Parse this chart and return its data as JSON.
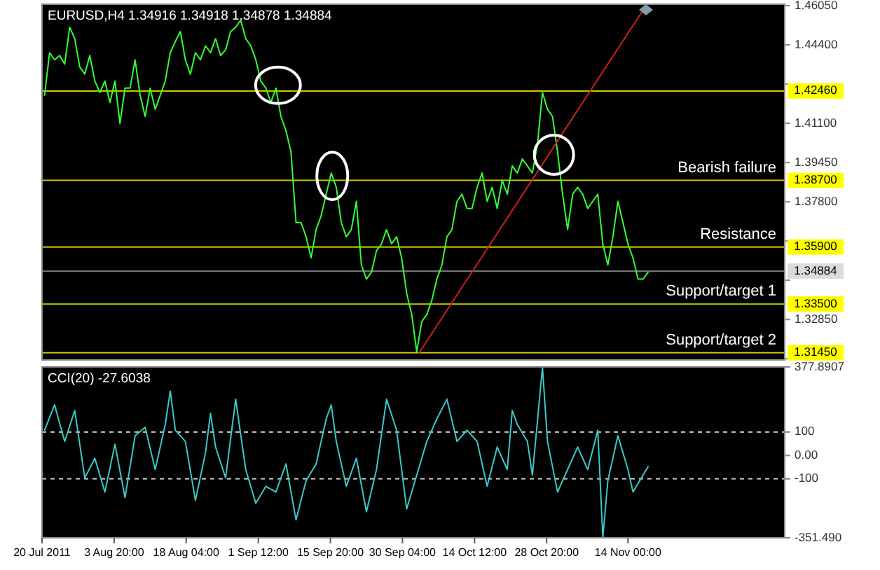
{
  "chart_data": [
    {
      "type": "line",
      "title": "EURUSD,H4 1.34916 1.34918 1.34878 1.34884",
      "tick_labels": "y",
      "grid": false,
      "x": [
        "2011-07-21",
        "2011-07-22",
        "2011-07-23",
        "2011-07-24",
        "2011-07-25",
        "2011-07-26",
        "2011-07-27",
        "2011-07-28",
        "2011-07-29",
        "2011-07-30",
        "2011-07-31",
        "2011-08-01",
        "2011-08-02",
        "2011-08-03",
        "2011-08-04",
        "2011-08-05",
        "2011-08-06",
        "2011-08-07",
        "2011-08-08",
        "2011-08-09",
        "2011-08-10",
        "2011-08-11",
        "2011-08-12",
        "2011-08-13",
        "2011-08-14",
        "2011-08-15",
        "2011-08-16",
        "2011-08-17",
        "2011-08-18",
        "2011-08-19",
        "2011-08-20",
        "2011-08-21",
        "2011-08-22",
        "2011-08-23",
        "2011-08-24",
        "2011-08-25",
        "2011-08-26",
        "2011-08-27",
        "2011-08-28",
        "2011-08-29",
        "2011-08-30",
        "2011-08-31",
        "2011-09-01",
        "2011-09-02",
        "2011-09-03",
        "2011-09-04",
        "2011-09-05",
        "2011-09-06",
        "2011-09-07",
        "2011-09-08",
        "2011-09-09",
        "2011-09-10",
        "2011-09-11",
        "2011-09-12",
        "2011-09-13",
        "2011-09-14",
        "2011-09-15",
        "2011-09-16",
        "2011-09-17",
        "2011-09-18",
        "2011-09-19",
        "2011-09-20",
        "2011-09-21",
        "2011-09-22",
        "2011-09-23",
        "2011-09-24",
        "2011-09-25",
        "2011-09-26",
        "2011-09-27",
        "2011-09-28",
        "2011-09-29",
        "2011-09-30",
        "2011-10-01",
        "2011-10-02",
        "2011-10-03",
        "2011-10-04",
        "2011-10-05",
        "2011-10-06",
        "2011-10-07",
        "2011-10-08",
        "2011-10-09",
        "2011-10-10",
        "2011-10-11",
        "2011-10-12",
        "2011-10-13",
        "2011-10-14",
        "2011-10-15",
        "2011-10-16",
        "2011-10-17",
        "2011-10-18",
        "2011-10-19",
        "2011-10-20",
        "2011-10-21",
        "2011-10-22",
        "2011-10-23",
        "2011-10-24",
        "2011-10-25",
        "2011-10-26",
        "2011-10-27",
        "2011-10-28",
        "2011-10-29",
        "2011-10-30",
        "2011-10-31",
        "2011-11-01",
        "2011-11-02",
        "2011-11-03",
        "2011-11-04",
        "2011-11-05",
        "2011-11-06",
        "2011-11-07",
        "2011-11-08",
        "2011-11-09",
        "2011-11-10",
        "2011-11-11",
        "2011-11-12",
        "2011-11-13",
        "2011-11-14",
        "2011-11-15",
        "2011-11-16",
        "2011-11-17",
        "2011-11-18"
      ],
      "series": [
        {
          "color": "#33ff33",
          "values": [
            1.4228,
            1.4407,
            1.4377,
            1.4395,
            1.4359,
            1.4514,
            1.4466,
            1.4347,
            1.4317,
            1.4395,
            1.4288,
            1.424,
            1.4288,
            1.4198,
            1.4288,
            1.4109,
            1.4258,
            1.4258,
            1.4377,
            1.4228,
            1.4139,
            1.4258,
            1.4169,
            1.4228,
            1.4288,
            1.4407,
            1.4454,
            1.4496,
            1.4377,
            1.4317,
            1.4407,
            1.4377,
            1.4436,
            1.4407,
            1.4466,
            1.4395,
            1.4419,
            1.4496,
            1.4514,
            1.4544,
            1.4466,
            1.4436,
            1.4377,
            1.4288,
            1.4258,
            1.4198,
            1.4258,
            1.4139,
            1.4079,
            1.399,
            1.3693,
            1.3693,
            1.3633,
            1.3544,
            1.3663,
            1.3722,
            1.3812,
            1.3901,
            1.3841,
            1.3693,
            1.3633,
            1.3663,
            1.3782,
            1.3514,
            1.3455,
            1.3484,
            1.3574,
            1.3603,
            1.3663,
            1.3603,
            1.3633,
            1.3544,
            1.3395,
            1.3306,
            1.315,
            1.3276,
            1.3306,
            1.3365,
            1.3455,
            1.3514,
            1.3633,
            1.3663,
            1.3782,
            1.3812,
            1.3752,
            1.3752,
            1.3841,
            1.3901,
            1.3782,
            1.3841,
            1.3752,
            1.3871,
            1.3812,
            1.3931,
            1.3901,
            1.396,
            1.3931,
            1.3901,
            1.402,
            1.424,
            1.4169,
            1.4139,
            1.399,
            1.3812,
            1.3663,
            1.3812,
            1.3841,
            1.3812,
            1.3752,
            1.3782,
            1.3812,
            1.3603,
            1.3514,
            1.3633,
            1.3782,
            1.3693,
            1.3603,
            1.3544,
            1.3455,
            1.3455,
            1.3484
          ]
        },
        {
          "type": "line",
          "color": "#cc2020",
          "x": [
            "2011-10-03T12:00",
            "2011-11-17T14:00"
          ],
          "values": [
            1.3145,
            1.4605
          ]
        }
      ],
      "xlim": [
        "2011-07-20T12:00",
        "2011-12-15T04:00"
      ],
      "ylim": [
        1.3115,
        1.4611
      ],
      "yticks": [
        {
          "value": 1.4605,
          "label": "1.46050"
        },
        {
          "value": 1.444,
          "label": "1.44400"
        },
        {
          "value": 1.4275,
          "label": null
        },
        {
          "value": 1.411,
          "label": "1.41100"
        },
        {
          "value": 1.3945,
          "label": "1.39450"
        },
        {
          "value": 1.378,
          "label": "1.37800"
        },
        {
          "value": 1.3615,
          "label": null
        },
        {
          "value": 1.345,
          "label": null
        },
        {
          "value": 1.3285,
          "label": "1.32850"
        },
        {
          "value": 1.312,
          "label": null
        }
      ],
      "ref_lines": [
        {
          "axis": "y",
          "value": 1.4246,
          "label": "1.42460",
          "color": "#c8c800"
        },
        {
          "axis": "y",
          "value": 1.387,
          "label": "1.38700",
          "color": "#c8c800"
        },
        {
          "axis": "y",
          "value": 1.359,
          "label": "1.35900",
          "color": "#c8c800"
        },
        {
          "axis": "y",
          "value": 1.34884,
          "label": "1.34884",
          "color": "#808080"
        },
        {
          "axis": "y",
          "value": 1.335,
          "label": "1.33500",
          "color": "#c8c800"
        },
        {
          "axis": "y",
          "value": 1.3145,
          "label": "1.31450",
          "color": "#c8c800"
        }
      ],
      "annotations": [
        {
          "text": "Bearish failure",
          "y": 1.387
        },
        {
          "text": "Resistance",
          "y": 1.359
        },
        {
          "text": "Support/target 1",
          "y": 1.335
        },
        {
          "text": "Support/target 2",
          "y": 1.3145
        }
      ]
    },
    {
      "type": "line",
      "title": "CCI(20) -27.6038",
      "grid": false,
      "x": [
        "2011-07-21",
        "2011-07-23",
        "2011-07-25",
        "2011-07-27",
        "2011-07-29",
        "2011-07-31",
        "2011-08-02",
        "2011-08-04",
        "2011-08-06",
        "2011-08-08",
        "2011-08-10",
        "2011-08-12",
        "2011-08-14",
        "2011-08-15",
        "2011-08-16",
        "2011-08-18",
        "2011-08-20",
        "2011-08-22",
        "2011-08-23",
        "2011-08-24",
        "2011-08-26",
        "2011-08-28",
        "2011-08-30",
        "2011-09-01",
        "2011-09-03",
        "2011-09-05",
        "2011-09-07",
        "2011-09-09",
        "2011-09-11",
        "2011-09-13",
        "2011-09-15",
        "2011-09-16",
        "2011-09-17",
        "2011-09-19",
        "2011-09-21",
        "2011-09-23",
        "2011-09-25",
        "2011-09-27",
        "2011-09-29",
        "2011-10-01",
        "2011-10-03",
        "2011-10-05",
        "2011-10-07",
        "2011-10-09",
        "2011-10-11",
        "2011-10-13",
        "2011-10-15",
        "2011-10-17",
        "2011-10-19",
        "2011-10-21",
        "2011-10-22",
        "2011-10-23",
        "2011-10-25",
        "2011-10-26",
        "2011-10-28",
        "2011-10-29",
        "2011-10-31",
        "2011-11-02",
        "2011-11-04",
        "2011-11-06",
        "2011-11-08",
        "2011-11-09",
        "2011-11-10",
        "2011-11-12",
        "2011-11-14",
        "2011-11-15",
        "2011-11-18"
      ],
      "series": [
        {
          "color": "#3cc8c8",
          "values": [
            108,
            216,
            60,
            192,
            -96,
            -12,
            -156,
            48,
            -180,
            84,
            120,
            -60,
            132,
            275,
            108,
            60,
            -192,
            12,
            180,
            36,
            -96,
            240,
            -60,
            -204,
            -132,
            -156,
            -36,
            -275,
            -108,
            -36,
            156,
            216,
            60,
            -132,
            -12,
            -240,
            -60,
            240,
            108,
            -228,
            -84,
            60,
            156,
            240,
            60,
            108,
            60,
            -132,
            36,
            -60,
            192,
            132,
            60,
            -84,
            377,
            60,
            -156,
            -60,
            36,
            -60,
            108,
            -351,
            -108,
            84,
            -60,
            -156,
            -48
          ]
        }
      ],
      "xlim": [
        "2011-07-20T12:00",
        "2011-12-15T04:00"
      ],
      "xticks": [
        {
          "value": "2011-07-20T12:00",
          "label": "20 Jul 2011"
        },
        {
          "value": "2011-08-03T20:00",
          "label": "3 Aug 20:00"
        },
        {
          "value": "2011-08-18T04:00",
          "label": "18 Aug 04:00"
        },
        {
          "value": "2011-09-01T12:00",
          "label": "1 Sep 12:00"
        },
        {
          "value": "2011-09-15T20:00",
          "label": "15 Sep 20:00"
        },
        {
          "value": "2011-09-30T04:00",
          "label": "30 Sep 04:00"
        },
        {
          "value": "2011-10-14T12:00",
          "label": "14 Oct 12:00"
        },
        {
          "value": "2011-10-28T20:00",
          "label": "28 Oct 20:00"
        },
        {
          "value": "2011-11-14T00:00",
          "label": "14 Nov 00:00"
        }
      ],
      "ylim": [
        -351.49,
        377.8907
      ],
      "yticks": [
        {
          "value": 377.8907,
          "label": "377.8907"
        },
        100,
        {
          "value": 0,
          "label": "0.00"
        },
        -100,
        {
          "value": -351.49,
          "label": "-351.490"
        }
      ],
      "ref_lines": [
        {
          "axis": "y",
          "value": 100,
          "color": "#c0c0c0",
          "line_style": "dashed"
        },
        {
          "axis": "y",
          "value": -100,
          "color": "#c0c0c0",
          "line_style": "dashed"
        }
      ]
    }
  ]
}
